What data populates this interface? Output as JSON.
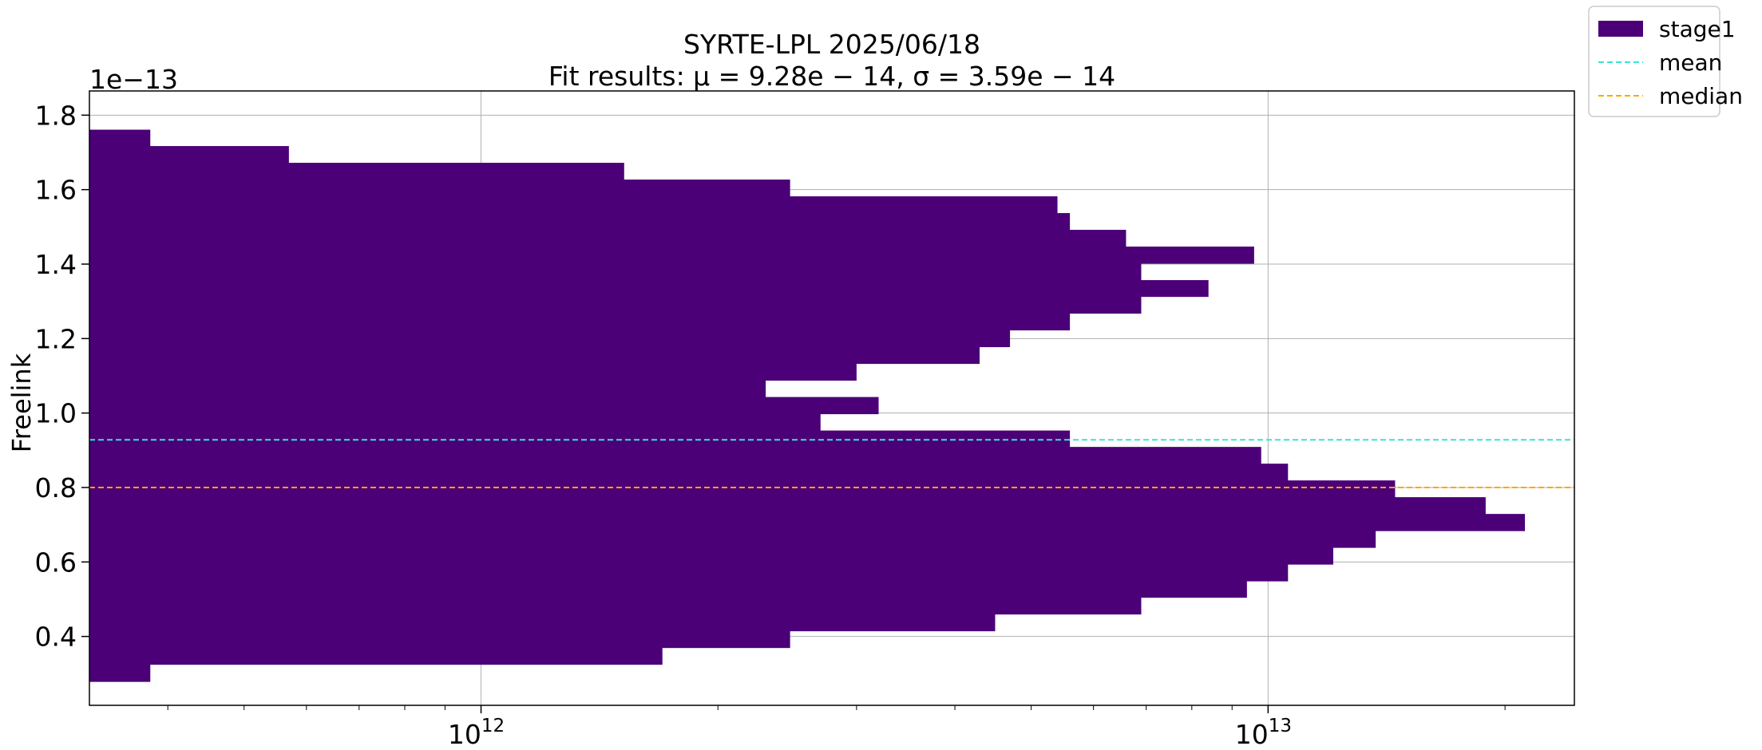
{
  "chart_data": {
    "type": "bar",
    "orientation": "horizontal",
    "title": "SYRTE-LPL 2025/06/18",
    "subtitle": "Fit results: μ = 9.28e − 14,  σ = 3.59e − 14",
    "xlabel": "",
    "ylabel": "Freelink",
    "y_offset_label": "1e−13",
    "x_scale": "log",
    "xlim": [
      318000000000,
      24500000000000
    ],
    "ylim": [
      0.215,
      1.865
    ],
    "x_ticks": [
      {
        "value": 1000000000000,
        "base": "10",
        "exp": "12"
      },
      {
        "value": 10000000000000,
        "base": "10",
        "exp": "13"
      }
    ],
    "y_ticks": [
      {
        "value": 0.4,
        "label": "0.4"
      },
      {
        "value": 0.6,
        "label": "0.6"
      },
      {
        "value": 0.8,
        "label": "0.8"
      },
      {
        "value": 1.0,
        "label": "1.0"
      },
      {
        "value": 1.2,
        "label": "1.2"
      },
      {
        "value": 1.4,
        "label": "1.4"
      },
      {
        "value": 1.6,
        "label": "1.6"
      },
      {
        "value": 1.8,
        "label": "1.8"
      }
    ],
    "grid": true,
    "legend_position": "upper-right-outside",
    "series": [
      {
        "name": "stage1",
        "kind": "histogram",
        "color": "#4b0078",
        "bins": [
          {
            "y0": 0.279,
            "y1": 0.325,
            "value": 380000000000
          },
          {
            "y0": 0.325,
            "y1": 0.37,
            "value": 1700000000000
          },
          {
            "y0": 0.37,
            "y1": 0.415,
            "value": 2470000000000
          },
          {
            "y0": 0.415,
            "y1": 0.46,
            "value": 4500000000000
          },
          {
            "y0": 0.46,
            "y1": 0.505,
            "value": 6900000000000
          },
          {
            "y0": 0.505,
            "y1": 0.549,
            "value": 9400000000000
          },
          {
            "y0": 0.549,
            "y1": 0.594,
            "value": 10600000000000
          },
          {
            "y0": 0.594,
            "y1": 0.639,
            "value": 12100000000000
          },
          {
            "y0": 0.639,
            "y1": 0.684,
            "value": 13700000000000
          },
          {
            "y0": 0.684,
            "y1": 0.729,
            "value": 21200000000000
          },
          {
            "y0": 0.729,
            "y1": 0.774,
            "value": 18900000000000
          },
          {
            "y0": 0.774,
            "y1": 0.819,
            "value": 14500000000000
          },
          {
            "y0": 0.819,
            "y1": 0.864,
            "value": 10600000000000
          },
          {
            "y0": 0.864,
            "y1": 0.909,
            "value": 9800000000000
          },
          {
            "y0": 0.909,
            "y1": 0.953,
            "value": 5600000000000
          },
          {
            "y0": 0.953,
            "y1": 0.998,
            "value": 2700000000000
          },
          {
            "y0": 0.998,
            "y1": 1.043,
            "value": 3200000000000
          },
          {
            "y0": 1.043,
            "y1": 1.088,
            "value": 2300000000000
          },
          {
            "y0": 1.088,
            "y1": 1.133,
            "value": 3000000000000
          },
          {
            "y0": 1.133,
            "y1": 1.178,
            "value": 4300000000000
          },
          {
            "y0": 1.178,
            "y1": 1.223,
            "value": 4700000000000
          },
          {
            "y0": 1.223,
            "y1": 1.268,
            "value": 5600000000000
          },
          {
            "y0": 1.268,
            "y1": 1.313,
            "value": 6900000000000
          },
          {
            "y0": 1.313,
            "y1": 1.357,
            "value": 8400000000000
          },
          {
            "y0": 1.357,
            "y1": 1.402,
            "value": 6900000000000
          },
          {
            "y0": 1.402,
            "y1": 1.447,
            "value": 9600000000000
          },
          {
            "y0": 1.447,
            "y1": 1.492,
            "value": 6600000000000
          },
          {
            "y0": 1.492,
            "y1": 1.537,
            "value": 5600000000000
          },
          {
            "y0": 1.537,
            "y1": 1.582,
            "value": 5400000000000
          },
          {
            "y0": 1.582,
            "y1": 1.627,
            "value": 2470000000000
          },
          {
            "y0": 1.627,
            "y1": 1.672,
            "value": 1520000000000
          },
          {
            "y0": 1.672,
            "y1": 1.717,
            "value": 570000000000
          },
          {
            "y0": 1.717,
            "y1": 1.761,
            "value": 380000000000
          }
        ]
      },
      {
        "name": "mean",
        "kind": "hline",
        "value": 0.928,
        "color": "#40e0d0",
        "dash": "dashed"
      },
      {
        "name": "median",
        "kind": "hline",
        "value": 0.8,
        "color": "#ffa500",
        "dash": "dashed"
      }
    ]
  }
}
